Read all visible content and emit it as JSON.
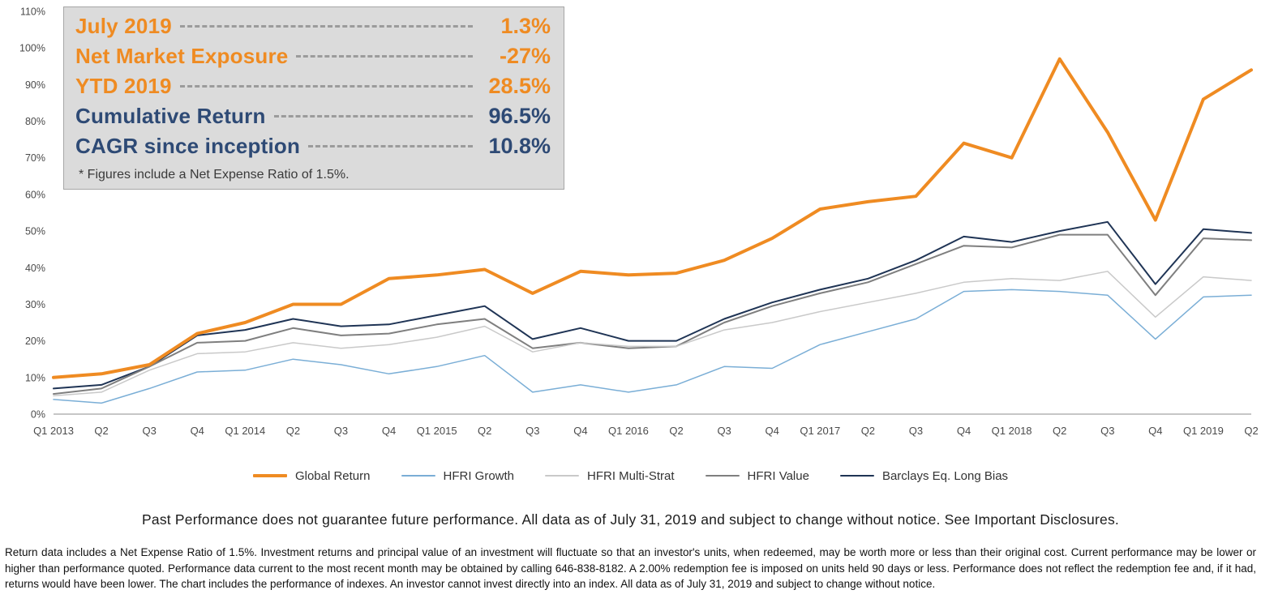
{
  "info_box": {
    "rows": [
      {
        "label": "July 2019",
        "value": "1.3%",
        "color": "#ef8b22"
      },
      {
        "label": "Net Market Exposure",
        "value": "-27%",
        "color": "#ef8b22"
      },
      {
        "label": "YTD 2019",
        "value": "28.5%",
        "color": "#ef8b22"
      },
      {
        "label": "Cumulative Return",
        "value": "96.5%",
        "color": "#2e4a75"
      },
      {
        "label": "CAGR since inception",
        "value": "10.8%",
        "color": "#2e4a75"
      }
    ],
    "footnote": "* Figures include a Net Expense Ratio of 1.5%."
  },
  "chart_data": {
    "type": "line",
    "x": [
      "Q1 2013",
      "Q2",
      "Q3",
      "Q4",
      "Q1 2014",
      "Q2",
      "Q3",
      "Q4",
      "Q1 2015",
      "Q2",
      "Q3",
      "Q4",
      "Q1 2016",
      "Q2",
      "Q3",
      "Q4",
      "Q1 2017",
      "Q2",
      "Q3",
      "Q4",
      "Q1 2018",
      "Q2",
      "Q3",
      "Q4",
      "Q1 2019",
      "Q2"
    ],
    "series": [
      {
        "name": "Global Return",
        "color": "#ef8b22",
        "width": 4,
        "values": [
          10,
          11,
          13.5,
          22,
          25,
          30,
          30,
          37,
          38,
          39.5,
          33,
          39,
          38,
          38.5,
          42,
          48,
          56,
          58,
          59.5,
          74,
          70,
          97,
          77,
          53,
          86,
          94
        ]
      },
      {
        "name": "HFRI Growth",
        "color": "#7aaed6",
        "width": 1.5,
        "values": [
          4,
          3,
          7,
          11.5,
          12,
          15,
          13.5,
          11,
          13,
          16,
          6,
          8,
          6,
          8,
          13,
          12.5,
          19,
          22.5,
          26,
          33.5,
          34,
          33.5,
          32.5,
          20.5,
          32,
          32.5
        ]
      },
      {
        "name": "HFRI Multi-Strat",
        "color": "#c9c9c9",
        "width": 1.5,
        "values": [
          5,
          6,
          12,
          16.5,
          17,
          19.5,
          18,
          19,
          21,
          24,
          17,
          19.5,
          18.5,
          18.5,
          23,
          25,
          28,
          30.5,
          33,
          36,
          37,
          36.5,
          39,
          26.5,
          37.5,
          36.5
        ]
      },
      {
        "name": "HFRI Value",
        "color": "#7f7f7f",
        "width": 2,
        "values": [
          5.5,
          7,
          13,
          19.5,
          20,
          23.5,
          21.5,
          22,
          24.5,
          26,
          18,
          19.5,
          18,
          18.5,
          25,
          29.5,
          33,
          36,
          41,
          46,
          45.5,
          49,
          49,
          32.5,
          48,
          47.5
        ]
      },
      {
        "name": "Barclays Eq. Long Bias",
        "color": "#1f3455",
        "width": 2,
        "values": [
          7,
          8,
          13,
          21.5,
          23,
          26,
          24,
          24.5,
          27,
          29.5,
          20.5,
          23.5,
          20,
          20,
          26,
          30.5,
          34,
          37,
          42,
          48.5,
          47,
          50,
          52.5,
          35.5,
          50.5,
          49.5
        ]
      }
    ],
    "ylim": [
      0,
      110
    ],
    "ytick_step": 10,
    "ytick_suffix": "%",
    "grid": false,
    "legend_position": "bottom",
    "axis_color": "#8c8c8c"
  },
  "footer": {
    "disclaimer": "Past Performance does not guarantee future performance. All data as of July 31, 2019 and subject to change without notice. See Important Disclosures.",
    "fine_print": "Return data includes a Net Expense Ratio of 1.5%. Investment returns and principal value of an investment will fluctuate so that an investor's units, when redeemed, may be worth more or less than their original cost. Current performance may be lower or higher than performance quoted. Performance data current to the most recent month may be obtained by calling 646-838-8182. A 2.00% redemption fee is imposed on units held 90 days or less. Performance does not reflect the redemption fee and, if it had, returns would have been lower. The chart includes the performance of indexes. An investor cannot invest directly into an index. All data as of July 31, 2019 and subject to change without notice."
  }
}
